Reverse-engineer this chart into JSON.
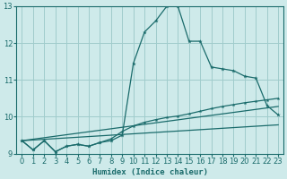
{
  "xlabel": "Humidex (Indice chaleur)",
  "xlim": [
    -0.5,
    23.5
  ],
  "ylim": [
    9,
    13
  ],
  "yticks": [
    9,
    10,
    11,
    12,
    13
  ],
  "xticks": [
    0,
    1,
    2,
    3,
    4,
    5,
    6,
    7,
    8,
    9,
    10,
    11,
    12,
    13,
    14,
    15,
    16,
    17,
    18,
    19,
    20,
    21,
    22,
    23
  ],
  "bg_color": "#ceeaea",
  "grid_color": "#a0cccc",
  "line_color": "#1a6b6b",
  "series1_x": [
    0,
    1,
    2,
    3,
    4,
    5,
    6,
    7,
    8,
    9,
    10,
    11,
    12,
    13,
    14,
    15,
    16,
    17,
    18,
    19,
    20,
    21,
    22,
    23
  ],
  "series1_y": [
    9.35,
    9.1,
    9.35,
    9.05,
    9.2,
    9.25,
    9.2,
    9.3,
    9.35,
    9.5,
    11.45,
    12.3,
    12.6,
    13.0,
    13.0,
    12.05,
    12.05,
    11.35,
    11.3,
    11.25,
    11.1,
    11.05,
    10.3,
    10.05
  ],
  "series2_x": [
    0,
    1,
    2,
    3,
    4,
    5,
    6,
    7,
    8,
    9,
    10,
    11,
    12,
    13,
    14,
    15,
    16,
    17,
    18,
    19,
    20,
    21,
    22,
    23
  ],
  "series2_y": [
    9.35,
    9.1,
    9.35,
    9.05,
    9.2,
    9.25,
    9.2,
    9.3,
    9.4,
    9.6,
    9.75,
    9.85,
    9.92,
    9.98,
    10.02,
    10.08,
    10.15,
    10.22,
    10.28,
    10.33,
    10.38,
    10.42,
    10.46,
    10.5
  ],
  "series3_x": [
    0,
    23
  ],
  "series3_y": [
    9.35,
    9.78
  ],
  "series4_x": [
    0,
    23
  ],
  "series4_y": [
    9.35,
    10.28
  ]
}
